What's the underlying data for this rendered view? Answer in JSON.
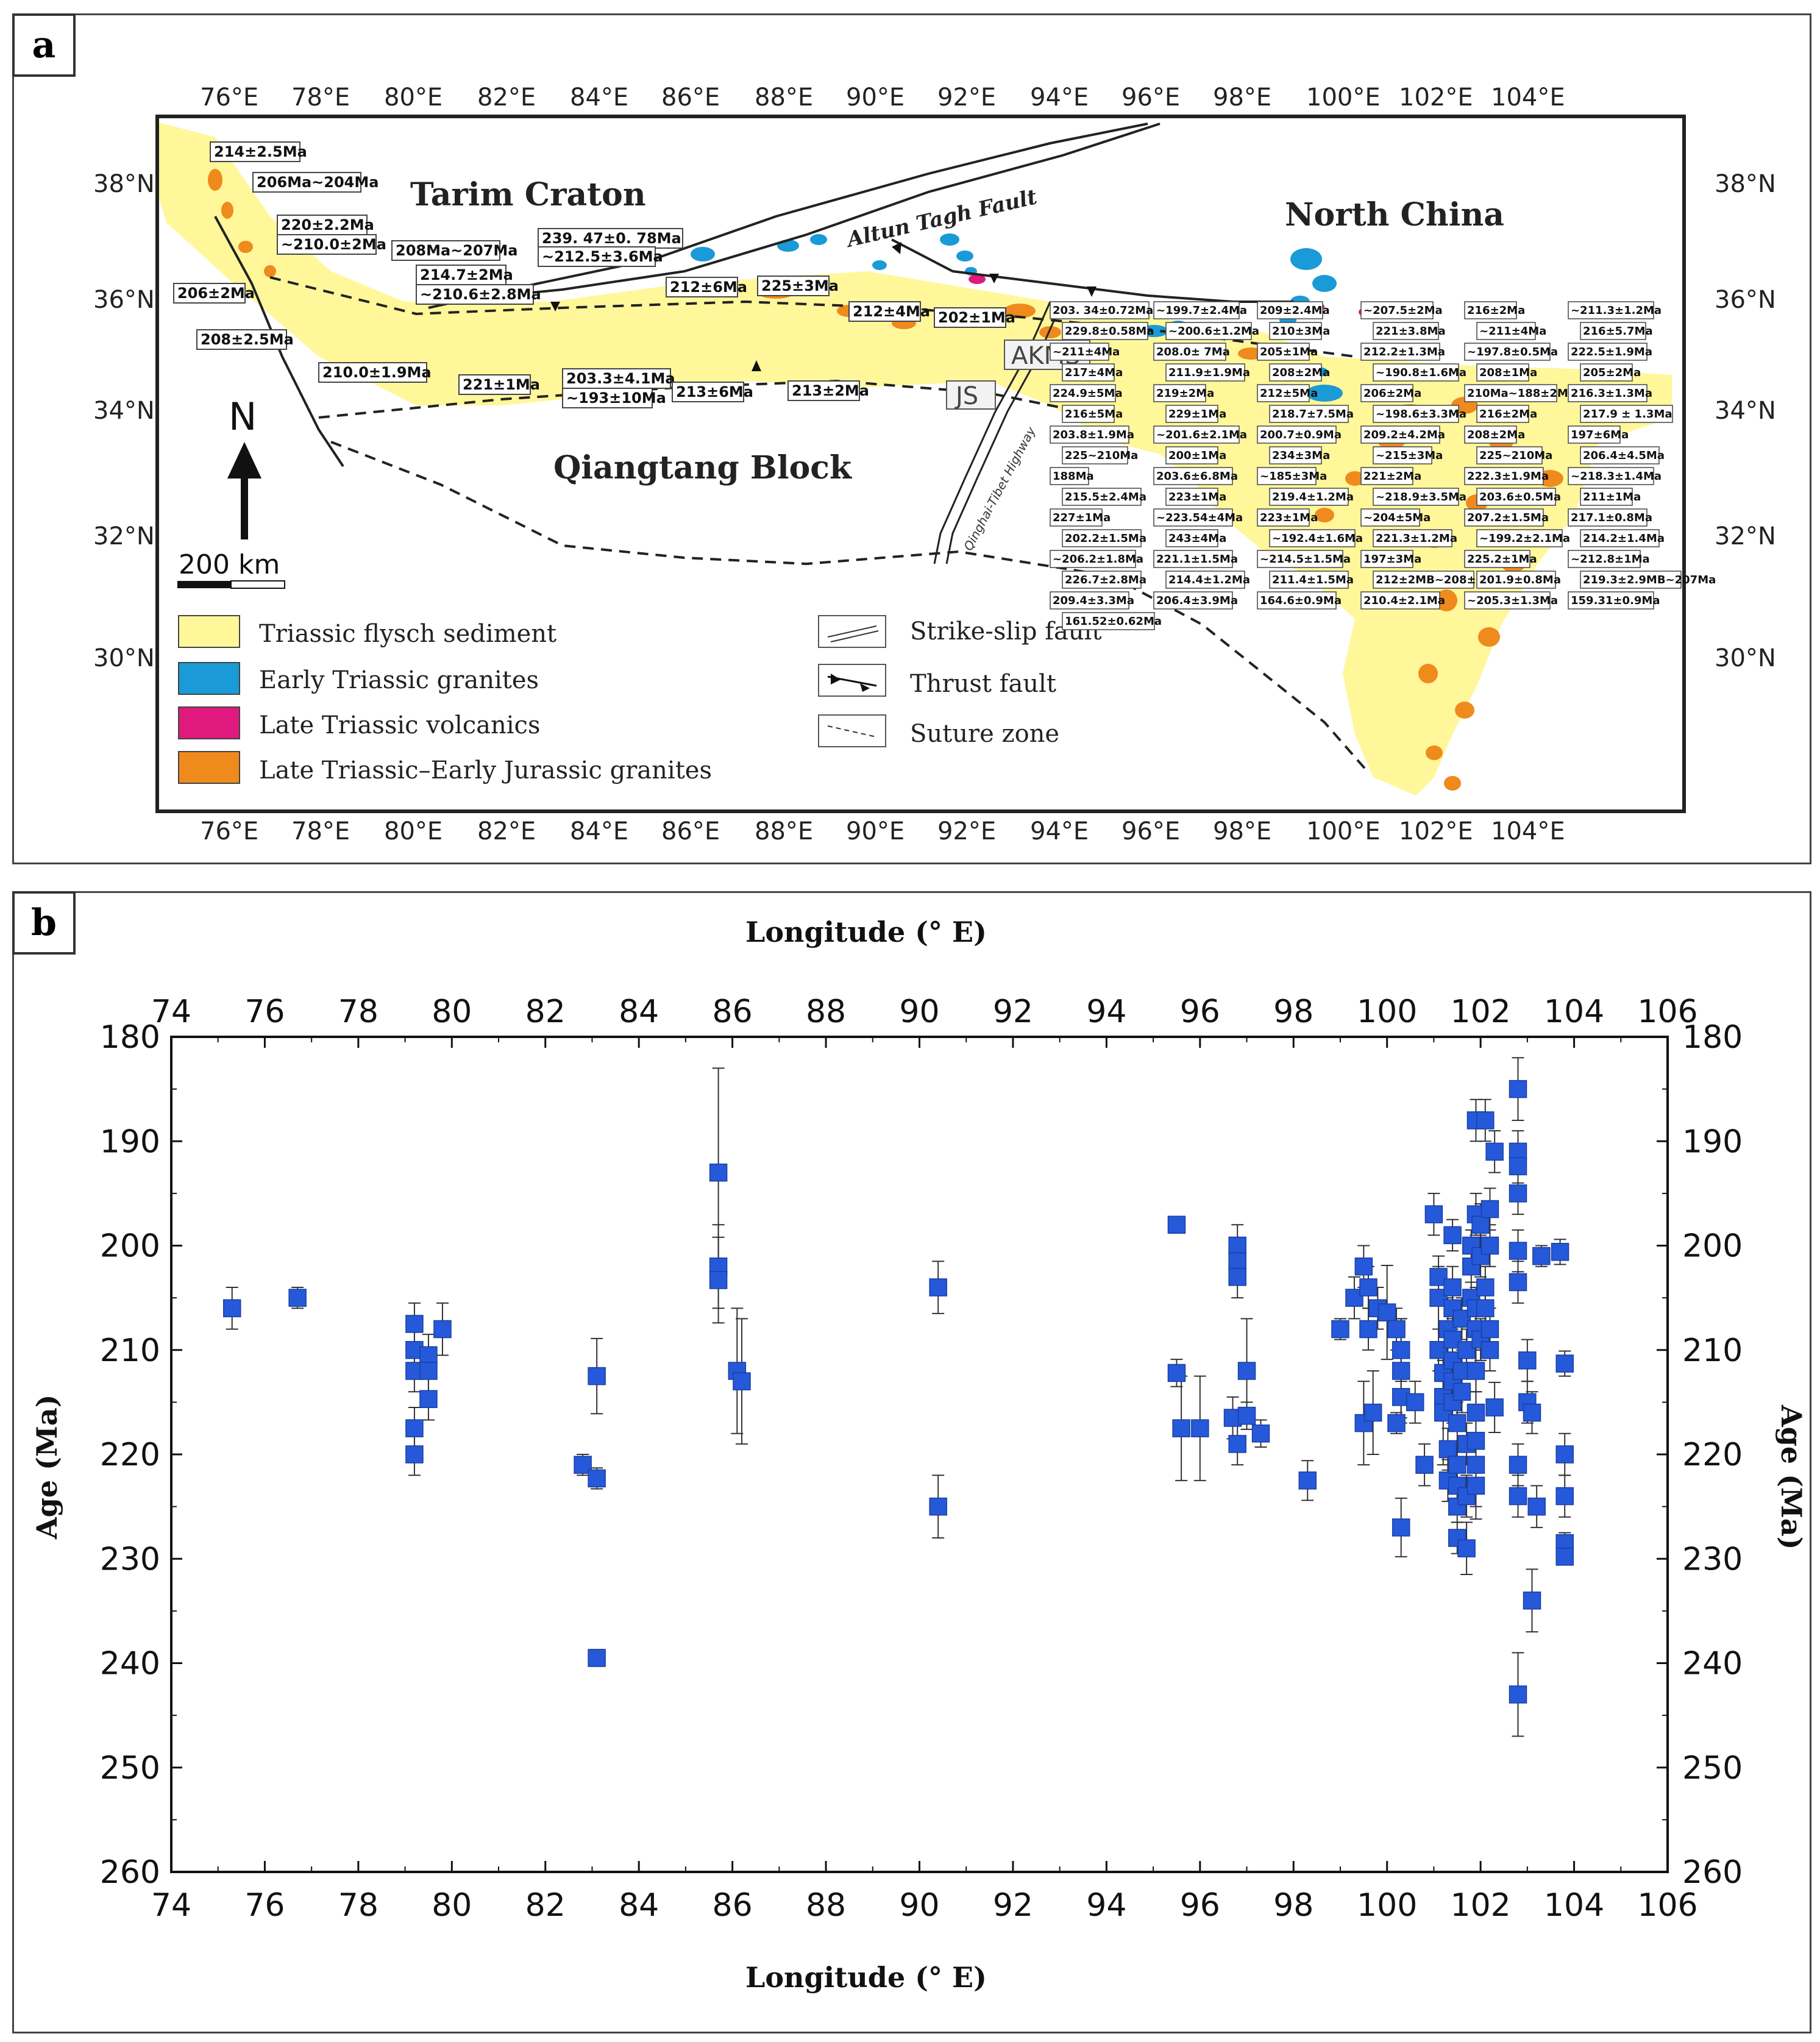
{
  "panel_a": {
    "tag": "a",
    "lon_ticks": [
      "76°E",
      "78°E",
      "80°E",
      "82°E",
      "84°E",
      "86°E",
      "88°E",
      "90°E",
      "92°E",
      "94°E",
      "96°E",
      "98°E",
      "100°E",
      "102°E",
      "104°E"
    ],
    "lat_ticks": [
      "38°N",
      "36°N",
      "34°N",
      "32°N",
      "30°N"
    ],
    "regions": {
      "tarim": "Tarim Craton",
      "north_china": "North China",
      "qiangtang": "Qiangtang Block",
      "fault": "Altun Tagh Fault",
      "akms": "AKMS",
      "js": "JS",
      "highway": "Qinghai-Tibet Highway"
    },
    "north": "N",
    "scale": "200 km",
    "legend_units": [
      {
        "label": "Triassic flysch sediment",
        "color": "#fff79a"
      },
      {
        "label": "Early Triassic granites",
        "color": "#1a9ad6"
      },
      {
        "label": "Late Triassic volcanics",
        "color": "#e0197e"
      },
      {
        "label": "Late Triassic–Early Jurassic granites",
        "color": "#ef8a1c"
      }
    ],
    "legend_lines": [
      "Strike-slip fault",
      "Thrust fault",
      "Suture zone"
    ],
    "age_labels_west": [
      "214±2.5Ma",
      "206Ma~204Ma",
      "220±2.2Ma",
      "~210.0±2Ma",
      "208Ma~207Ma",
      "206±2Ma",
      "214.7±2Ma",
      "~210.6±2.8Ma",
      "208±2.5Ma",
      "210.0±1.9Ma",
      "221±1Ma",
      "239. 47±0. 78Ma",
      "~212.5±3.6Ma",
      "203.3±4.1Ma",
      "~193±10Ma",
      "213±6Ma",
      "212±6Ma",
      "225±3Ma",
      "213±2Ma",
      "212±4Ma",
      "202±1Ma"
    ],
    "age_labels_east": [
      "203. 34±0.72Ma",
      "~199.7±2.4Ma",
      "209±2.4Ma",
      "~207.5±2Ma",
      "216±2Ma",
      "~211.3±1.2Ma",
      "229.8±0.58Ma",
      "~200.6±1.2Ma",
      "210±3Ma",
      "221±3.8Ma",
      "~211±4Ma",
      "216±5.7Ma",
      "~211±4Ma",
      "208.0± 7Ma",
      "205±1Ma",
      "212.2±1.3Ma",
      "~197.8±0.5Ma",
      "222.5±1.9Ma",
      "217±4Ma",
      "211.9±1.9Ma",
      "208±2Ma",
      "~190.8±1.6Ma",
      "208±1Ma",
      "205±2Ma",
      "224.9±5Ma",
      "219±2Ma",
      "212±5Ma",
      "206±2Ma",
      "210Ma~188±2Ma",
      "216.3±1.3Ma",
      "216±5Ma",
      "229±1Ma",
      "218.7±7.5Ma",
      "~198.6±3.3Ma",
      "216±2Ma",
      "217.9 ± 1.3Ma",
      "203.8±1.9Ma",
      "~201.6±2.1Ma",
      "200.7±0.9Ma",
      "209.2±4.2Ma",
      "208±2Ma",
      "197±6Ma",
      "225~210Ma",
      "200±1Ma",
      "234±3Ma",
      "~215±3Ma",
      "225~210Ma",
      "206.4±4.5Ma",
      "188Ma",
      "203.6±6.8Ma",
      "~185±3Ma",
      "221±2Ma",
      "222.3±1.9Ma",
      "~218.3±1.4Ma",
      "215.5±2.4Ma",
      "223±1Ma",
      "219.4±1.2Ma",
      "~218.9±3.5Ma",
      "203.6±0.5Ma",
      "211±1Ma",
      "227±1Ma",
      "~223.54±4Ma",
      "223±1Ma",
      "~204±5Ma",
      "207.2±1.5Ma",
      "217.1±0.8Ma",
      "202.2±1.5Ma",
      "243±4Ma",
      "~192.4±1.6Ma",
      "221.3±1.2Ma",
      "~199.2±2.1Ma",
      "214.2±1.4Ma",
      "~206.2±1.8Ma",
      "221.1±1.5Ma",
      "~214.5±1.5Ma",
      "197±3Ma",
      "225.2±1Ma",
      "~212.8±1Ma",
      "226.7±2.8Ma",
      "214.4±1.2Ma",
      "211.4±1.5Ma",
      "212±2MB~208±2Ma",
      "201.9±0.8Ma",
      "219.3±2.9MB~207Ma",
      "209.4±3.3Ma",
      "206.4±3.9Ma",
      "164.6±0.9Ma",
      "210.4±2.1Ma",
      "~205.3±1.3Ma",
      "159.31±0.9Ma",
      "161.52±0.62Ma"
    ]
  },
  "panel_b": {
    "tag": "b",
    "chart_data": {
      "type": "scatter",
      "title": "",
      "xlabel": "Longitude (° E)",
      "ylabel": "Age (Ma)",
      "xlim": [
        74,
        106
      ],
      "ylim": [
        180,
        260
      ],
      "y_inverted": true,
      "x_ticks": [
        74,
        76,
        78,
        80,
        82,
        84,
        86,
        88,
        90,
        92,
        94,
        96,
        98,
        100,
        102,
        104,
        106
      ],
      "y_ticks": [
        180,
        190,
        200,
        210,
        220,
        230,
        240,
        250,
        260
      ],
      "marker_color": "#2559d9",
      "points": [
        [
          75.3,
          206,
          2
        ],
        [
          76.7,
          205,
          1
        ],
        [
          79.2,
          207.5,
          2
        ],
        [
          79.2,
          210,
          2
        ],
        [
          79.2,
          212,
          2
        ],
        [
          79.2,
          217.5,
          2
        ],
        [
          79.2,
          220,
          2
        ],
        [
          79.5,
          210.5,
          2
        ],
        [
          79.5,
          212,
          2
        ],
        [
          79.5,
          214.7,
          2
        ],
        [
          79.8,
          208,
          2.5
        ],
        [
          82.8,
          221,
          1
        ],
        [
          83.1,
          212.5,
          3.6
        ],
        [
          83.1,
          222.3,
          1
        ],
        [
          83.1,
          239.5,
          0.8
        ],
        [
          85.7,
          193,
          10
        ],
        [
          85.7,
          202,
          4
        ],
        [
          85.7,
          203.3,
          4.1
        ],
        [
          86.1,
          212,
          6
        ],
        [
          86.2,
          213,
          6
        ],
        [
          90.4,
          204,
          2.5
        ],
        [
          90.4,
          225,
          3
        ],
        [
          95.5,
          198,
          0.7
        ],
        [
          95.5,
          212.2,
          1.3
        ],
        [
          95.6,
          217.5,
          5
        ],
        [
          96,
          217.5,
          5
        ],
        [
          96.7,
          216.5,
          2
        ],
        [
          96.8,
          219,
          2
        ],
        [
          96.8,
          200,
          2
        ],
        [
          96.8,
          201.5,
          2
        ],
        [
          96.8,
          203,
          2
        ],
        [
          97,
          212,
          5
        ],
        [
          97,
          216.3,
          1.3
        ],
        [
          97.3,
          218,
          1.3
        ],
        [
          98.3,
          222.5,
          1.9
        ],
        [
          99,
          208,
          1
        ],
        [
          99.3,
          205,
          2
        ],
        [
          99.5,
          217,
          4
        ],
        [
          99.5,
          202,
          2
        ],
        [
          99.6,
          204,
          2
        ],
        [
          99.6,
          208,
          2
        ],
        [
          99.7,
          216,
          4
        ],
        [
          99.8,
          206,
          2
        ],
        [
          100,
          206.4,
          4.5
        ],
        [
          100.2,
          208,
          2
        ],
        [
          100.2,
          217,
          1
        ],
        [
          100.3,
          210,
          3
        ],
        [
          100.3,
          212,
          5
        ],
        [
          100.3,
          214.5,
          2
        ],
        [
          100.3,
          227,
          2.8
        ],
        [
          100.6,
          215,
          2
        ],
        [
          100.8,
          221,
          2
        ],
        [
          101,
          197,
          2
        ],
        [
          101.1,
          203,
          2
        ],
        [
          101.1,
          205,
          3
        ],
        [
          101.1,
          210,
          2
        ],
        [
          101.2,
          212.2,
          1.5
        ],
        [
          101.2,
          214.5,
          1.5
        ],
        [
          101.2,
          216,
          5
        ],
        [
          101.3,
          208,
          3
        ],
        [
          101.3,
          219.5,
          2
        ],
        [
          101.3,
          222.5,
          2
        ],
        [
          101.4,
          199,
          1.5
        ],
        [
          101.4,
          204,
          2
        ],
        [
          101.4,
          206,
          2
        ],
        [
          101.4,
          209,
          2
        ],
        [
          101.4,
          211,
          2
        ],
        [
          101.4,
          213,
          2
        ],
        [
          101.4,
          215,
          2
        ],
        [
          101.5,
          217,
          2
        ],
        [
          101.5,
          221,
          2
        ],
        [
          101.5,
          223,
          1.5
        ],
        [
          101.5,
          225,
          1.5
        ],
        [
          101.5,
          228,
          1.5
        ],
        [
          101.6,
          207,
          2
        ],
        [
          101.6,
          212,
          2
        ],
        [
          101.6,
          214,
          2
        ],
        [
          101.7,
          210,
          2
        ],
        [
          101.7,
          219,
          2
        ],
        [
          101.7,
          224,
          2
        ],
        [
          101.7,
          229,
          2.5
        ],
        [
          101.8,
          200,
          1.5
        ],
        [
          101.8,
          202,
          1.5
        ],
        [
          101.8,
          205,
          1.5
        ],
        [
          101.9,
          188,
          2
        ],
        [
          101.9,
          197,
          2
        ],
        [
          101.9,
          206,
          2
        ],
        [
          101.9,
          208,
          2
        ],
        [
          101.9,
          212,
          2
        ],
        [
          101.9,
          216,
          2
        ],
        [
          101.9,
          218.7,
          7.5
        ],
        [
          101.9,
          221,
          2
        ],
        [
          101.9,
          223,
          2
        ],
        [
          102,
          198,
          2
        ],
        [
          102,
          201,
          2
        ],
        [
          102,
          209,
          2
        ],
        [
          102.1,
          188,
          2
        ],
        [
          102.1,
          204,
          2
        ],
        [
          102.1,
          206,
          2
        ],
        [
          102.2,
          196.5,
          2
        ],
        [
          102.2,
          200,
          2
        ],
        [
          102.2,
          208,
          2
        ],
        [
          102.2,
          210,
          2
        ],
        [
          102.3,
          191,
          2
        ],
        [
          102.3,
          215.5,
          2.4
        ],
        [
          102.8,
          185,
          3
        ],
        [
          102.8,
          191,
          2
        ],
        [
          102.8,
          192.4,
          1.6
        ],
        [
          102.8,
          195,
          2
        ],
        [
          102.8,
          200.5,
          2
        ],
        [
          102.8,
          203.5,
          2
        ],
        [
          102.8,
          221,
          2
        ],
        [
          102.8,
          224,
          2
        ],
        [
          102.8,
          243,
          4
        ],
        [
          103,
          211,
          2
        ],
        [
          103,
          215,
          2
        ],
        [
          103.1,
          216,
          2
        ],
        [
          103.1,
          234,
          3
        ],
        [
          103.2,
          225,
          2
        ],
        [
          103.3,
          201,
          1
        ],
        [
          103.7,
          200.6,
          1.2
        ],
        [
          103.8,
          211.3,
          1.2
        ],
        [
          103.8,
          220,
          2
        ],
        [
          103.8,
          224,
          2
        ],
        [
          103.8,
          228.5,
          1
        ],
        [
          103.8,
          229.8,
          0.6
        ]
      ]
    }
  }
}
